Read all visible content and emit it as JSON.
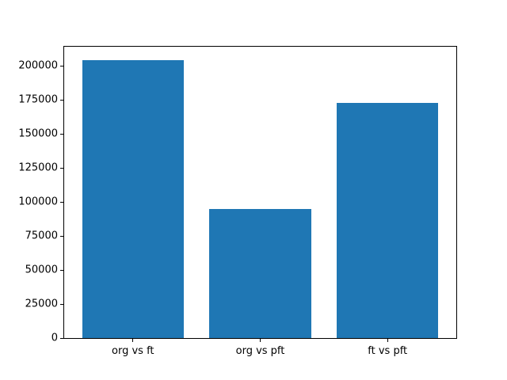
{
  "chart_data": {
    "type": "bar",
    "title": "",
    "xlabel": "",
    "ylabel": "",
    "categories": [
      "org vs ft",
      "org vs pft",
      "ft vs pft"
    ],
    "values": [
      204000,
      95000,
      173000
    ],
    "bar_color": "#1f77b4",
    "axis_color": "#000000",
    "text_color": "#000000",
    "ylim": [
      0,
      214000
    ],
    "yticks": [
      0,
      25000,
      50000,
      75000,
      100000,
      125000,
      150000,
      175000,
      200000
    ],
    "grid": false,
    "legend": "none"
  }
}
